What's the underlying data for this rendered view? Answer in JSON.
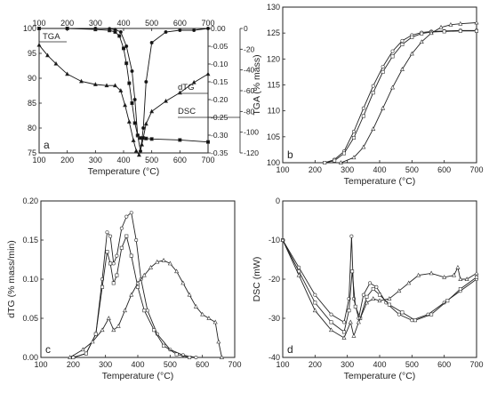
{
  "chart_data": [
    {
      "panel": "a",
      "type": "line",
      "xlabel": "Temperature (°C)",
      "xlim": [
        100,
        700
      ],
      "xticks": [
        100,
        200,
        300,
        400,
        500,
        600,
        700
      ],
      "ylim_left": [
        75,
        100
      ],
      "yticks_left": [
        75,
        80,
        85,
        90,
        95,
        100
      ],
      "ylim_dtg": [
        -0.35,
        0.0
      ],
      "yticks_dtg": [
        "0.00",
        "-0.05",
        "-0.10",
        "-0.15",
        "-0.20",
        "-0.25",
        "-0.30",
        "-0.35"
      ],
      "ylim_dsc": [
        -120,
        0
      ],
      "yticks_dsc": [
        0,
        -20,
        -40,
        -60,
        -80,
        -100,
        -120
      ],
      "annotations": [
        "TGA",
        "dTG",
        "DSC",
        "a"
      ],
      "series": [
        {
          "name": "TGA",
          "axis": "left",
          "x": [
            100,
            200,
            300,
            350,
            370,
            385,
            400,
            410,
            420,
            430,
            440,
            450,
            460,
            470,
            480,
            500,
            600,
            700
          ],
          "y": [
            100,
            100,
            99.8,
            99.6,
            99.3,
            98.5,
            96,
            93,
            89,
            85,
            81,
            78.5,
            78,
            78,
            77.9,
            77.8,
            77.6,
            77.2
          ]
        },
        {
          "name": "DSC",
          "axis": "right",
          "x": [
            100,
            130,
            160,
            200,
            250,
            300,
            340,
            370,
            390,
            405,
            420,
            435,
            445,
            455,
            465,
            480,
            500,
            550,
            600,
            650,
            700
          ],
          "y": [
            -16,
            -26,
            -34,
            -44,
            -51,
            -54,
            -55,
            -55,
            -60,
            -74,
            -90,
            -108,
            -118,
            -122,
            -112,
            -92,
            -80,
            -70,
            -62,
            -52,
            -44
          ]
        },
        {
          "name": "dTG",
          "axis": "dtg",
          "x": [
            100,
            300,
            350,
            370,
            390,
            410,
            430,
            440,
            450,
            460,
            470,
            480,
            500,
            550,
            600,
            650,
            700
          ],
          "y": [
            0,
            0,
            -0.001,
            -0.003,
            -0.01,
            -0.05,
            -0.12,
            -0.2,
            -0.3,
            -0.345,
            -0.28,
            -0.15,
            -0.04,
            -0.01,
            -0.005,
            -0.005,
            0
          ]
        }
      ]
    },
    {
      "panel": "b",
      "type": "line",
      "xlabel": "Temperature (°C)",
      "ylabel": "TGA (% mass)",
      "xlim": [
        100,
        700
      ],
      "xticks": [
        100,
        200,
        300,
        400,
        500,
        600,
        700
      ],
      "ylim": [
        100,
        130
      ],
      "yticks": [
        100,
        105,
        110,
        115,
        120,
        125,
        130
      ],
      "annotation": "b",
      "series": [
        {
          "x": [
            230,
            260,
            290,
            320,
            350,
            380,
            410,
            440,
            470,
            500,
            530,
            560,
            600,
            650,
            700
          ],
          "y": [
            100,
            100.6,
            102.2,
            106,
            110.5,
            114.8,
            118.5,
            121.5,
            123.5,
            124.6,
            125.1,
            125.3,
            125.4,
            125.5,
            125.5
          ]
        },
        {
          "x": [
            230,
            260,
            290,
            320,
            350,
            380,
            410,
            440,
            470,
            500,
            530,
            560,
            600,
            650,
            700
          ],
          "y": [
            100,
            100.4,
            101.8,
            104.8,
            109,
            113.5,
            117.5,
            120.5,
            122.8,
            124.2,
            124.9,
            125.2,
            125.3,
            125.4,
            125.4
          ]
        },
        {
          "x": [
            280,
            320,
            350,
            380,
            410,
            440,
            470,
            500,
            530,
            560,
            590,
            620,
            650,
            700
          ],
          "y": [
            100,
            101,
            103,
            106.5,
            110.5,
            114.5,
            118,
            121,
            123.3,
            125,
            126.1,
            126.6,
            126.8,
            127
          ]
        }
      ]
    },
    {
      "panel": "c",
      "type": "line",
      "xlabel": "Temperature (°C)",
      "ylabel": "dTG (% mass/min)",
      "xlim": [
        100,
        700
      ],
      "xticks": [
        100,
        200,
        300,
        400,
        500,
        600,
        700
      ],
      "ylim": [
        0.0,
        0.2
      ],
      "yticks": [
        "0.00",
        "0.05",
        "0.10",
        "0.15",
        "0.20"
      ],
      "annotation": "c",
      "series": [
        {
          "x": [
            200,
            240,
            270,
            290,
            305,
            315,
            325,
            335,
            350,
            365,
            380,
            395,
            410,
            430,
            460,
            500,
            540,
            580
          ],
          "y": [
            0,
            0.005,
            0.03,
            0.1,
            0.16,
            0.155,
            0.12,
            0.13,
            0.165,
            0.18,
            0.185,
            0.15,
            0.1,
            0.06,
            0.03,
            0.01,
            0.003,
            0
          ]
        },
        {
          "x": [
            200,
            240,
            270,
            290,
            305,
            315,
            325,
            335,
            350,
            365,
            380,
            400,
            420,
            450,
            480,
            520,
            560
          ],
          "y": [
            0,
            0.005,
            0.03,
            0.09,
            0.135,
            0.12,
            0.095,
            0.105,
            0.14,
            0.155,
            0.13,
            0.09,
            0.06,
            0.035,
            0.015,
            0.004,
            0
          ]
        },
        {
          "x": [
            190,
            230,
            260,
            290,
            310,
            325,
            340,
            360,
            380,
            400,
            420,
            440,
            460,
            480,
            500,
            520,
            540,
            560,
            580,
            600,
            620,
            640,
            650,
            660
          ],
          "y": [
            0,
            0.01,
            0.02,
            0.035,
            0.05,
            0.035,
            0.04,
            0.06,
            0.08,
            0.095,
            0.105,
            0.115,
            0.122,
            0.124,
            0.12,
            0.11,
            0.095,
            0.08,
            0.065,
            0.055,
            0.05,
            0.045,
            0.02,
            0
          ]
        }
      ]
    },
    {
      "panel": "d",
      "type": "line",
      "xlabel": "Temperature (°C)",
      "ylabel": "DSC (mW)",
      "xlim": [
        100,
        700
      ],
      "xticks": [
        100,
        200,
        300,
        400,
        500,
        600,
        700
      ],
      "ylim": [
        -40,
        0
      ],
      "yticks": [
        -40,
        -30,
        -20,
        -10,
        0
      ],
      "annotation": "d",
      "series": [
        {
          "x": [
            100,
            150,
            200,
            250,
            290,
            305,
            313,
            320,
            335,
            350,
            370,
            390,
            420,
            460,
            500,
            550,
            600,
            650,
            700
          ],
          "y": [
            -10,
            -17,
            -24,
            -29,
            -31,
            -25,
            -9,
            -25,
            -30,
            -24,
            -21,
            -22,
            -26,
            -29,
            -30.5,
            -29,
            -26,
            -23,
            -20
          ]
        },
        {
          "x": [
            100,
            150,
            200,
            250,
            290,
            305,
            315,
            325,
            340,
            360,
            380,
            400,
            430,
            470,
            510,
            560,
            610,
            650,
            700
          ],
          "y": [
            -10,
            -18,
            -26,
            -31,
            -33.5,
            -28,
            -18,
            -27,
            -30,
            -24.5,
            -22.5,
            -24,
            -26.5,
            -28.5,
            -30.5,
            -29,
            -25.5,
            -22.5,
            -19.5
          ]
        },
        {
          "x": [
            100,
            150,
            200,
            250,
            290,
            310,
            320,
            335,
            360,
            380,
            400,
            430,
            460,
            490,
            520,
            560,
            600,
            630,
            642,
            650,
            670,
            700
          ],
          "y": [
            -10,
            -19,
            -28,
            -33,
            -35,
            -31,
            -34.5,
            -31,
            -26,
            -25,
            -25.5,
            -25,
            -23,
            -21,
            -19,
            -18.5,
            -19.5,
            -19,
            -17,
            -20,
            -20,
            -18.5
          ]
        }
      ]
    }
  ]
}
